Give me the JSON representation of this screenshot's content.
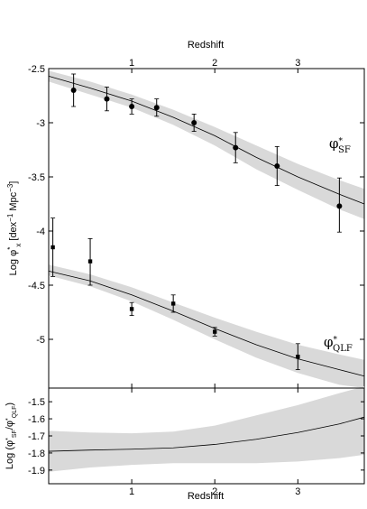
{
  "chart_data": [
    {
      "type": "scatter",
      "panel": "top",
      "top_xlabel": "Redshift",
      "ylabel_parts": [
        "Log φ",
        "*",
        "x",
        " [dex",
        "−1",
        " Mpc",
        "−3",
        "]"
      ],
      "xlim": [
        0,
        3.8
      ],
      "ylim": [
        -5.45,
        -2.5
      ],
      "xticks": [
        1,
        2,
        3
      ],
      "yticks": [
        -2.5,
        -3,
        -3.5,
        -4,
        -4.5,
        -5
      ],
      "ytick_labels": [
        "-2.5",
        "-3",
        "-3.5",
        "-4",
        "-4.5",
        "-5"
      ],
      "series": [
        {
          "label_main": "φ",
          "label_sup": "*",
          "label_sub": "SF",
          "marker": "circle",
          "points": [
            {
              "x": 0.3,
              "y": -2.7,
              "lo": -2.85,
              "hi": -2.55
            },
            {
              "x": 0.7,
              "y": -2.78,
              "lo": -2.89,
              "hi": -2.67
            },
            {
              "x": 1.0,
              "y": -2.85,
              "lo": -2.92,
              "hi": -2.78
            },
            {
              "x": 1.3,
              "y": -2.86,
              "lo": -2.94,
              "hi": -2.78
            },
            {
              "x": 1.75,
              "y": -3.0,
              "lo": -3.08,
              "hi": -2.92
            },
            {
              "x": 2.25,
              "y": -3.23,
              "lo": -3.37,
              "hi": -3.09
            },
            {
              "x": 2.75,
              "y": -3.4,
              "lo": -3.58,
              "hi": -3.22
            },
            {
              "x": 3.5,
              "y": -3.77,
              "lo": -4.01,
              "hi": -3.51
            }
          ],
          "fit": {
            "x": [
              0,
              0.5,
              1.0,
              1.5,
              2.0,
              2.5,
              3.0,
              3.5,
              3.8
            ],
            "y": [
              -2.57,
              -2.68,
              -2.8,
              -2.95,
              -3.12,
              -3.32,
              -3.5,
              -3.66,
              -3.75
            ],
            "band_lo": [
              -2.62,
              -2.74,
              -2.86,
              -3.02,
              -3.21,
              -3.43,
              -3.62,
              -3.8,
              -3.89
            ],
            "band_hi": [
              -2.52,
              -2.62,
              -2.74,
              -2.88,
              -3.04,
              -3.21,
              -3.38,
              -3.53,
              -3.61
            ]
          }
        },
        {
          "label_main": "φ",
          "label_sup": "*",
          "label_sub": "QLF",
          "marker": "square",
          "points": [
            {
              "x": 0.05,
              "y": -4.15,
              "lo": -4.42,
              "hi": -3.88
            },
            {
              "x": 0.5,
              "y": -4.28,
              "lo": -4.5,
              "hi": -4.07
            },
            {
              "x": 1.0,
              "y": -4.72,
              "lo": -4.78,
              "hi": -4.66
            },
            {
              "x": 1.5,
              "y": -4.67,
              "lo": -4.75,
              "hi": -4.59
            },
            {
              "x": 2.0,
              "y": -4.93,
              "lo": -4.97,
              "hi": -4.89
            },
            {
              "x": 3.0,
              "y": -5.16,
              "lo": -5.28,
              "hi": -5.04
            }
          ],
          "fit": {
            "x": [
              0,
              0.5,
              1.0,
              1.5,
              2.0,
              2.5,
              3.0,
              3.5,
              3.8
            ],
            "y": [
              -4.37,
              -4.46,
              -4.59,
              -4.74,
              -4.9,
              -5.05,
              -5.18,
              -5.28,
              -5.34
            ],
            "band_lo": [
              -4.41,
              -4.51,
              -4.65,
              -4.82,
              -5.0,
              -5.17,
              -5.31,
              -5.42,
              -5.45
            ],
            "band_hi": [
              -4.31,
              -4.4,
              -4.52,
              -4.66,
              -4.8,
              -4.93,
              -5.05,
              -5.14,
              -5.19
            ]
          }
        }
      ]
    },
    {
      "type": "line",
      "panel": "bottom",
      "xlabel": "Redshift",
      "ylabel": "Log (φ*SF/φ*QLF)",
      "xlim": [
        0,
        3.8
      ],
      "ylim": [
        -1.98,
        -1.42
      ],
      "xticks": [
        1,
        2,
        3
      ],
      "xtick_labels": [
        "1",
        "2",
        "3"
      ],
      "yticks": [
        -1.5,
        -1.6,
        -1.7,
        -1.8,
        -1.9
      ],
      "ytick_labels": [
        "-1.5",
        "-1.6",
        "-1.7",
        "-1.8",
        "-1.9"
      ],
      "series": [
        {
          "x": [
            0,
            0.5,
            1.0,
            1.5,
            2.0,
            2.5,
            3.0,
            3.5,
            3.8
          ],
          "y": [
            -1.79,
            -1.783,
            -1.778,
            -1.77,
            -1.75,
            -1.72,
            -1.68,
            -1.63,
            -1.59
          ],
          "band_lo": [
            -1.91,
            -1.885,
            -1.87,
            -1.86,
            -1.86,
            -1.86,
            -1.85,
            -1.83,
            -1.81
          ],
          "band_hi": [
            -1.67,
            -1.68,
            -1.685,
            -1.675,
            -1.64,
            -1.58,
            -1.52,
            -1.45,
            -1.41
          ]
        }
      ]
    }
  ]
}
